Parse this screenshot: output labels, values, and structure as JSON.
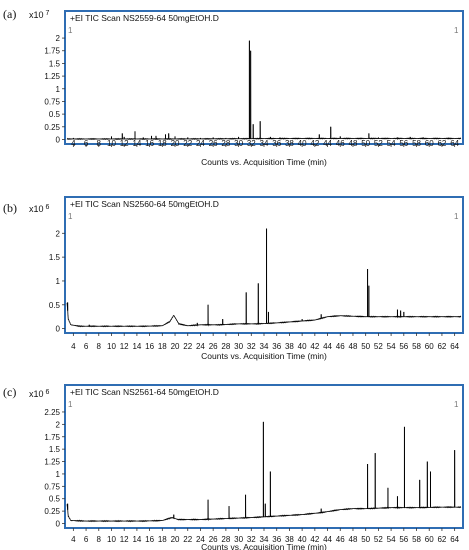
{
  "figure": {
    "panels": [
      {
        "letter": "(a)",
        "multiplier": "x10",
        "exponent": "7",
        "scan_title": "+EI TIC Scan NS2559-64 50mgEtOH.D",
        "corner_left": "1",
        "corner_right": "1"
      },
      {
        "letter": "(b)",
        "multiplier": "x10",
        "exponent": "6",
        "scan_title": "+EI TIC Scan NS2560-64 50mgEtOH.D",
        "corner_left": "1",
        "corner_right": "1"
      },
      {
        "letter": "(c)",
        "multiplier": "x10",
        "exponent": "6",
        "scan_title": "+EI TIC Scan NS2561-64 50mgEtOH.D",
        "corner_left": "1",
        "corner_right": "1"
      }
    ]
  },
  "chart_data": [
    {
      "type": "line",
      "title": "+EI TIC Scan NS2559-64 50mgEtOH.D",
      "xlabel": "Counts vs. Acquisition Time (min)",
      "ylabel": "",
      "y_multiplier": "x10^7",
      "xlim": [
        3.0,
        65.0
      ],
      "ylim": [
        -0.05,
        2.1
      ],
      "x_ticks": [
        4,
        6,
        8,
        10,
        12,
        14,
        16,
        18,
        20,
        22,
        24,
        26,
        28,
        30,
        32,
        34,
        36,
        38,
        40,
        42,
        44,
        46,
        48,
        50,
        52,
        54,
        56,
        58,
        60,
        62,
        64
      ],
      "y_ticks": [
        0,
        0.25,
        0.5,
        0.75,
        1,
        1.25,
        1.5,
        1.75,
        2
      ],
      "y_tick_labels": [
        "0",
        "0.25",
        "0.5",
        "0.75",
        "1",
        "1.25",
        "1.5",
        "1.75",
        "2"
      ],
      "baseline": [
        [
          3.0,
          0.01
        ],
        [
          20,
          0.01
        ],
        [
          40,
          0.02
        ],
        [
          65,
          0.02
        ]
      ],
      "peaks": [
        [
          4.0,
          0.03
        ],
        [
          10.0,
          0.06
        ],
        [
          11.7,
          0.12
        ],
        [
          12.0,
          0.05
        ],
        [
          13.7,
          0.16
        ],
        [
          15.0,
          0.04
        ],
        [
          16.3,
          0.07
        ],
        [
          17.0,
          0.07
        ],
        [
          18.5,
          0.1
        ],
        [
          19.0,
          0.12
        ],
        [
          20.0,
          0.06
        ],
        [
          22.0,
          0.04
        ],
        [
          24.0,
          0.03
        ],
        [
          26.0,
          0.04
        ],
        [
          28.0,
          0.03
        ],
        [
          30.0,
          0.05
        ],
        [
          31.7,
          1.95
        ],
        [
          31.9,
          1.75
        ],
        [
          32.3,
          0.3
        ],
        [
          33.4,
          0.36
        ],
        [
          35.0,
          0.05
        ],
        [
          36.5,
          0.04
        ],
        [
          42.7,
          0.1
        ],
        [
          44.5,
          0.25
        ],
        [
          46.0,
          0.06
        ],
        [
          50.5,
          0.12
        ],
        [
          52.0,
          0.04
        ],
        [
          55.0,
          0.04
        ],
        [
          57.0,
          0.05
        ],
        [
          59.0,
          0.04
        ],
        [
          63.0,
          0.03
        ]
      ]
    },
    {
      "type": "line",
      "title": "+EI TIC Scan NS2560-64 50mgEtOH.D",
      "xlabel": "Counts vs. Acquisition Time (min)",
      "ylabel": "",
      "y_multiplier": "x10^6",
      "xlim": [
        3.0,
        65.0
      ],
      "ylim": [
        -0.05,
        2.3
      ],
      "x_ticks": [
        4,
        6,
        8,
        10,
        12,
        14,
        16,
        18,
        20,
        22,
        24,
        26,
        28,
        30,
        32,
        34,
        36,
        38,
        40,
        42,
        44,
        46,
        48,
        50,
        52,
        54,
        56,
        58,
        60,
        62,
        64
      ],
      "y_ticks": [
        0,
        0.5,
        1,
        1.5,
        2
      ],
      "y_tick_labels": [
        "0",
        "0.5",
        "1",
        "1.5",
        "2"
      ],
      "baseline": [
        [
          3.0,
          0.55
        ],
        [
          3.2,
          0.2
        ],
        [
          3.6,
          0.08
        ],
        [
          5.0,
          0.05
        ],
        [
          10,
          0.05
        ],
        [
          15,
          0.05
        ],
        [
          18,
          0.06
        ],
        [
          19.2,
          0.15
        ],
        [
          19.8,
          0.28
        ],
        [
          20.6,
          0.1
        ],
        [
          22,
          0.06
        ],
        [
          24,
          0.08
        ],
        [
          27,
          0.08
        ],
        [
          30,
          0.1
        ],
        [
          33,
          0.1
        ],
        [
          36,
          0.12
        ],
        [
          39,
          0.15
        ],
        [
          42,
          0.18
        ],
        [
          44,
          0.25
        ],
        [
          46,
          0.27
        ],
        [
          50,
          0.25
        ],
        [
          54,
          0.25
        ],
        [
          58,
          0.25
        ],
        [
          62,
          0.25
        ],
        [
          65,
          0.25
        ]
      ],
      "peaks": [
        [
          3.1,
          0.55
        ],
        [
          6.5,
          0.08
        ],
        [
          23.5,
          0.12
        ],
        [
          25.2,
          0.5
        ],
        [
          27.5,
          0.2
        ],
        [
          31.2,
          0.76
        ],
        [
          33.1,
          0.95
        ],
        [
          34.4,
          2.1
        ],
        [
          34.7,
          0.35
        ],
        [
          40.0,
          0.2
        ],
        [
          43.0,
          0.3
        ],
        [
          50.3,
          1.25
        ],
        [
          50.5,
          0.9
        ],
        [
          55.0,
          0.4
        ],
        [
          55.5,
          0.38
        ],
        [
          56.0,
          0.35
        ]
      ]
    },
    {
      "type": "line",
      "title": "+EI TIC Scan NS2561-64 50mgEtOH.D",
      "xlabel": "Counts vs. Acquisition Time (min)",
      "ylabel": "",
      "y_multiplier": "x10^6",
      "xlim": [
        3.0,
        65.0
      ],
      "ylim": [
        -0.05,
        2.35
      ],
      "x_ticks": [
        4,
        6,
        8,
        10,
        12,
        14,
        16,
        18,
        20,
        22,
        24,
        26,
        28,
        30,
        32,
        34,
        36,
        38,
        40,
        42,
        44,
        46,
        48,
        50,
        52,
        54,
        56,
        58,
        60,
        62,
        64
      ],
      "y_ticks": [
        0,
        0.25,
        0.5,
        0.75,
        1,
        1.25,
        1.5,
        1.75,
        2,
        2.25
      ],
      "y_tick_labels": [
        "0",
        "0.25",
        "0.5",
        "0.75",
        "1",
        "1.25",
        "1.5",
        "1.75",
        "2",
        "2.25"
      ],
      "baseline": [
        [
          3.0,
          0.4
        ],
        [
          3.2,
          0.15
        ],
        [
          3.6,
          0.06
        ],
        [
          6,
          0.05
        ],
        [
          10,
          0.05
        ],
        [
          15,
          0.05
        ],
        [
          18,
          0.06
        ],
        [
          19.5,
          0.12
        ],
        [
          20.5,
          0.08
        ],
        [
          24,
          0.08
        ],
        [
          28,
          0.1
        ],
        [
          32,
          0.12
        ],
        [
          36,
          0.15
        ],
        [
          40,
          0.18
        ],
        [
          43,
          0.22
        ],
        [
          46,
          0.28
        ],
        [
          48,
          0.3
        ],
        [
          50,
          0.3
        ],
        [
          54,
          0.32
        ],
        [
          58,
          0.32
        ],
        [
          62,
          0.33
        ],
        [
          65,
          0.33
        ]
      ],
      "peaks": [
        [
          3.1,
          0.4
        ],
        [
          19.8,
          0.18
        ],
        [
          25.2,
          0.48
        ],
        [
          28.5,
          0.35
        ],
        [
          31.1,
          0.58
        ],
        [
          33.9,
          2.05
        ],
        [
          34.2,
          0.4
        ],
        [
          35.0,
          1.05
        ],
        [
          43.0,
          0.3
        ],
        [
          50.3,
          1.2
        ],
        [
          51.5,
          1.42
        ],
        [
          53.5,
          0.72
        ],
        [
          55.0,
          0.55
        ],
        [
          56.1,
          1.95
        ],
        [
          58.5,
          0.88
        ],
        [
          59.7,
          1.25
        ],
        [
          60.2,
          1.05
        ],
        [
          64.0,
          1.48
        ]
      ]
    }
  ]
}
